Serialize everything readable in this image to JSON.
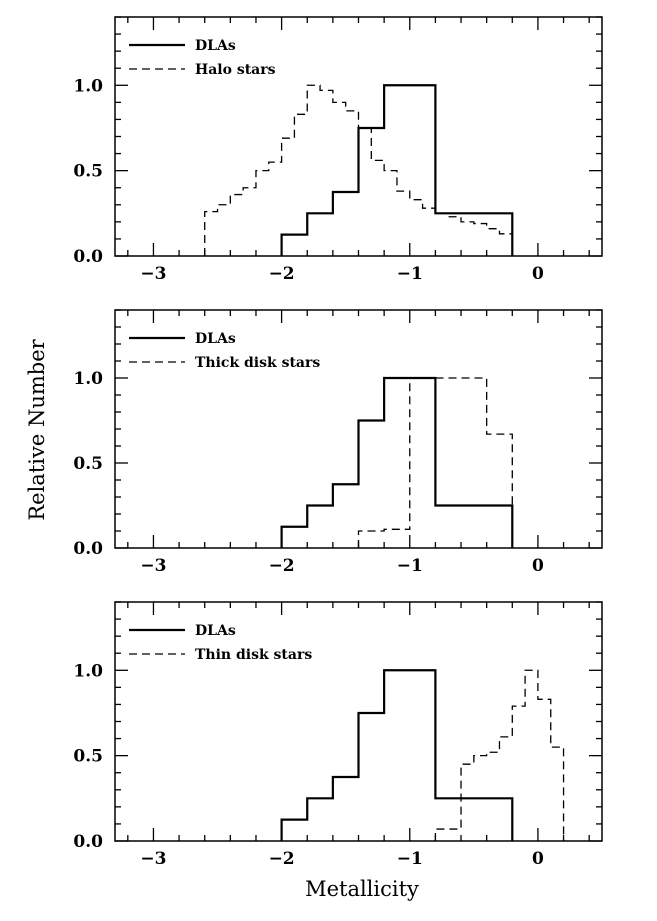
{
  "figure": {
    "ylabel": "Relative Number",
    "xlabel": "Metallicity"
  },
  "chart_data": [
    {
      "type": "step",
      "xlabel": "",
      "ylabel": "",
      "xlim": [
        -3.3,
        0.5
      ],
      "ylim": [
        0,
        1.4
      ],
      "xticks": [
        -3,
        -2,
        -1,
        0
      ],
      "yticks": [
        0.0,
        0.5,
        1.0
      ],
      "xtick_labels": [
        "−3",
        "−2",
        "−1",
        "0"
      ],
      "ytick_labels": [
        "0.0",
        "0.5",
        "1.0"
      ],
      "legend_position": "top-left",
      "series": [
        {
          "name": "DLAs",
          "style": "solid",
          "bin_edges": [
            -2.0,
            -1.8,
            -1.6,
            -1.4,
            -1.2,
            -1.0,
            -0.8,
            -0.6,
            -0.4,
            -0.2
          ],
          "values": [
            0.125,
            0.25,
            0.375,
            0.75,
            1.0,
            1.0,
            0.25,
            0.25,
            0.25
          ]
        },
        {
          "name": "Halo stars",
          "style": "dashed",
          "bin_edges": [
            -2.6,
            -2.5,
            -2.4,
            -2.3,
            -2.2,
            -2.1,
            -2.0,
            -1.9,
            -1.8,
            -1.7,
            -1.6,
            -1.5,
            -1.4,
            -1.3,
            -1.2,
            -1.1,
            -1.0,
            -0.9,
            -0.8,
            -0.7,
            -0.6,
            -0.5,
            -0.4,
            -0.3,
            -0.2
          ],
          "values": [
            0.26,
            0.3,
            0.36,
            0.4,
            0.5,
            0.55,
            0.69,
            0.83,
            1.0,
            0.97,
            0.9,
            0.85,
            0.75,
            0.56,
            0.5,
            0.38,
            0.33,
            0.28,
            0.25,
            0.23,
            0.2,
            0.19,
            0.16,
            0.13
          ]
        }
      ]
    },
    {
      "type": "step",
      "xlabel": "",
      "ylabel": "",
      "xlim": [
        -3.3,
        0.5
      ],
      "ylim": [
        0,
        1.4
      ],
      "xticks": [
        -3,
        -2,
        -1,
        0
      ],
      "yticks": [
        0.0,
        0.5,
        1.0
      ],
      "xtick_labels": [
        "−3",
        "−2",
        "−1",
        "0"
      ],
      "ytick_labels": [
        "0.0",
        "0.5",
        "1.0"
      ],
      "legend_position": "top-left",
      "series": [
        {
          "name": "DLAs",
          "style": "solid",
          "bin_edges": [
            -2.0,
            -1.8,
            -1.6,
            -1.4,
            -1.2,
            -1.0,
            -0.8,
            -0.6,
            -0.4,
            -0.2
          ],
          "values": [
            0.125,
            0.25,
            0.375,
            0.75,
            1.0,
            1.0,
            0.25,
            0.25,
            0.25
          ]
        },
        {
          "name": "Thick disk stars",
          "style": "dashed",
          "bin_edges": [
            -1.4,
            -1.2,
            -1.0,
            -0.8,
            -0.6,
            -0.4,
            -0.2
          ],
          "values": [
            0.1,
            0.11,
            1.0,
            1.0,
            1.0,
            0.67
          ]
        }
      ]
    },
    {
      "type": "step",
      "xlabel": "",
      "ylabel": "",
      "xlim": [
        -3.3,
        0.5
      ],
      "ylim": [
        0,
        1.4
      ],
      "xticks": [
        -3,
        -2,
        -1,
        0
      ],
      "yticks": [
        0.0,
        0.5,
        1.0
      ],
      "xtick_labels": [
        "−3",
        "−2",
        "−1",
        "0"
      ],
      "ytick_labels": [
        "0.0",
        "0.5",
        "1.0"
      ],
      "legend_position": "top-left",
      "series": [
        {
          "name": "DLAs",
          "style": "solid",
          "bin_edges": [
            -2.0,
            -1.8,
            -1.6,
            -1.4,
            -1.2,
            -1.0,
            -0.8,
            -0.6,
            -0.4,
            -0.2
          ],
          "values": [
            0.125,
            0.25,
            0.375,
            0.75,
            1.0,
            1.0,
            0.25,
            0.25,
            0.25
          ]
        },
        {
          "name": "Thin disk stars",
          "style": "dashed",
          "bin_edges": [
            -0.8,
            -0.6,
            -0.5,
            -0.4,
            -0.3,
            -0.2,
            -0.1,
            0.0,
            0.1,
            0.2
          ],
          "values": [
            0.07,
            0.45,
            0.5,
            0.52,
            0.61,
            0.79,
            1.0,
            0.83,
            0.55
          ]
        }
      ]
    }
  ]
}
